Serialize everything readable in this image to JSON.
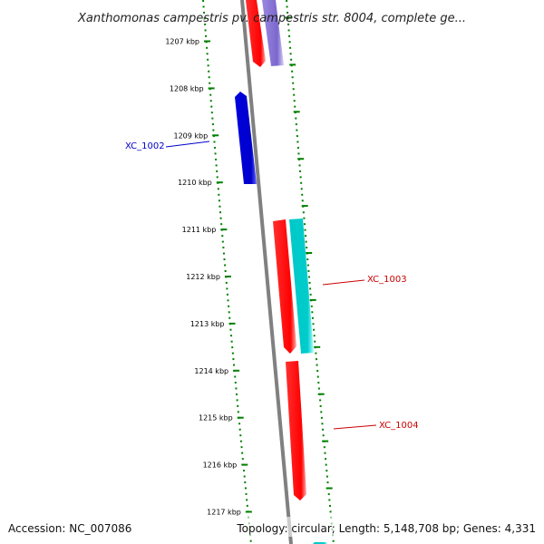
{
  "title": "Xanthomonas campestris pv. campestris str. 8004, complete ge...",
  "footer": {
    "accession": "Accession: NC_007086",
    "summary": "Topology: circular; Length: 5,148,708 bp; Genes: 4,331"
  },
  "ticks": [
    {
      "label": "1207 kbp"
    },
    {
      "label": "1208 kbp"
    },
    {
      "label": "1209 kbp"
    },
    {
      "label": "1210 kbp"
    },
    {
      "label": "1211 kbp"
    },
    {
      "label": "1212 kbp"
    },
    {
      "label": "1213 kbp"
    },
    {
      "label": "1214 kbp"
    },
    {
      "label": "1215 kbp"
    },
    {
      "label": "1216 kbp"
    },
    {
      "label": "1217 kbp"
    }
  ],
  "genes": [
    {
      "id": "XC_1002",
      "color": "#0000cc",
      "strand": "reverse",
      "labeled": true
    },
    {
      "id": "XC_1003",
      "color": "#ff0000",
      "strand": "forward",
      "labeled": true
    },
    {
      "id": "XC_1004",
      "color": "#ff0000",
      "strand": "forward",
      "labeled": true
    }
  ],
  "colors": {
    "backbone": "#808080",
    "tick": "#008000",
    "forward_gene": "#ff0000",
    "reverse_gene": "#0000cc",
    "purple_feature": "#7b68cc",
    "cyan_feature": "#00cccc"
  }
}
